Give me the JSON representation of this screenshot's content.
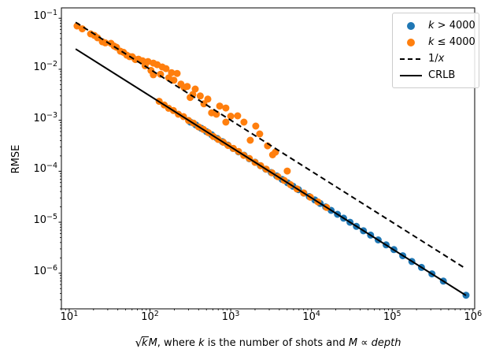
{
  "figure": {
    "background": "#ffffff",
    "text_color": "#000000",
    "spine_color": "#000000"
  },
  "axes": {
    "ylabel": "RMSE",
    "xlabel_full": "√kM, where k is the number of shots and M ∝ depth",
    "xlabel_parts": {
      "radical": "√",
      "radicand": "k",
      "var_m": "M",
      "rest1": ", where ",
      "var_k": "k",
      "rest2": " is the number of shots and ",
      "var_m2": "M",
      "prop": " ∝ ",
      "var_depth": "depth"
    },
    "x_ticks": [
      {
        "base": "10",
        "exp": "1",
        "value": 10
      },
      {
        "base": "10",
        "exp": "2",
        "value": 100
      },
      {
        "base": "10",
        "exp": "3",
        "value": 1000
      },
      {
        "base": "10",
        "exp": "4",
        "value": 10000
      },
      {
        "base": "10",
        "exp": "5",
        "value": 100000
      },
      {
        "base": "10",
        "exp": "6",
        "value": 1000000
      }
    ],
    "y_ticks": [
      {
        "base": "10",
        "exp": "−1",
        "value": 0.1
      },
      {
        "base": "10",
        "exp": "−2",
        "value": 0.01
      },
      {
        "base": "10",
        "exp": "−3",
        "value": 0.001
      },
      {
        "base": "10",
        "exp": "−4",
        "value": 0.0001
      },
      {
        "base": "10",
        "exp": "−5",
        "value": 1e-05
      },
      {
        "base": "10",
        "exp": "−6",
        "value": 1e-06
      }
    ]
  },
  "legend": {
    "items": [
      {
        "marker": "dot",
        "color": "#1f77b4",
        "pre": "",
        "var": "k",
        "rest": " > 4000"
      },
      {
        "marker": "dot",
        "color": "#ff7f0e",
        "pre": "",
        "var": "k",
        "rest": " ≤ 4000"
      },
      {
        "marker": "dash",
        "color": "#000000",
        "pre": "1/",
        "var": "x",
        "rest": ""
      },
      {
        "marker": "line",
        "color": "#000000",
        "pre": "",
        "var": "",
        "rest": "CRLB"
      }
    ]
  },
  "chart_data": {
    "type": "scatter",
    "title": "",
    "xlabel": "√kM, where k is the number of shots and M ∝ depth",
    "ylabel": "RMSE",
    "x_scale": "log",
    "y_scale": "log",
    "x_range": [
      8,
      1050000
    ],
    "y_range": [
      2e-07,
      0.16
    ],
    "grid": false,
    "legend_position": "upper right",
    "marker_radius": 4.5,
    "series": [
      {
        "name": "k > 4000",
        "color": "#1f77b4",
        "points": [
          [
            317,
            0.00092
          ],
          [
            370,
            0.00081
          ],
          [
            430,
            0.0007
          ],
          [
            500,
            0.0006
          ],
          [
            580,
            0.00052
          ],
          [
            680,
            0.00044
          ],
          [
            790,
            0.00038
          ],
          [
            920,
            0.000326
          ],
          [
            1070,
            0.00028
          ],
          [
            1250,
            0.00024
          ],
          [
            1460,
            0.000206
          ],
          [
            1700,
            0.000176
          ],
          [
            2000,
            0.00015
          ],
          [
            2330,
            0.000129
          ],
          [
            2720,
            0.00011
          ],
          [
            3180,
            9.43e-05
          ],
          [
            3710,
            8.08e-05
          ],
          [
            4330,
            6.93e-05
          ],
          [
            5060,
            5.93e-05
          ],
          [
            5900,
            5.08e-05
          ],
          [
            6900,
            4.35e-05
          ],
          [
            8050,
            3.73e-05
          ],
          [
            9400,
            3.19e-05
          ],
          [
            11000,
            2.73e-05
          ],
          [
            12800,
            2.34e-05
          ],
          [
            15000,
            2e-05
          ],
          [
            17500,
            1.71e-05
          ],
          [
            21000,
            1.43e-05
          ],
          [
            25000,
            1.2e-05
          ],
          [
            30000,
            1e-05
          ],
          [
            36000,
            8.3e-06
          ],
          [
            44000,
            6.8e-06
          ],
          [
            54000,
            5.6e-06
          ],
          [
            67000,
            4.5e-06
          ],
          [
            84000,
            3.6e-06
          ],
          [
            105000,
            2.9e-06
          ],
          [
            135000,
            2.2e-06
          ],
          [
            175000,
            1.7e-06
          ],
          [
            230000,
            1.3e-06
          ],
          [
            310000,
            9.7e-07
          ],
          [
            430000,
            7e-07
          ],
          [
            820000,
            3.7e-07
          ]
        ]
      },
      {
        "name": "k ≤ 4000",
        "color": "#ff7f0e",
        "points": [
          [
            12.5,
            0.0706
          ],
          [
            14.5,
            0.062
          ],
          [
            18.4,
            0.0494
          ],
          [
            20.5,
            0.046
          ],
          [
            22.4,
            0.0414
          ],
          [
            25.7,
            0.0346
          ],
          [
            28,
            0.033
          ],
          [
            32.9,
            0.0323
          ],
          [
            36,
            0.0285
          ],
          [
            38.5,
            0.027
          ],
          [
            43,
            0.0226
          ],
          [
            47,
            0.0215
          ],
          [
            51.5,
            0.0189
          ],
          [
            56,
            0.0177
          ],
          [
            60.3,
            0.0176
          ],
          [
            66,
            0.0155
          ],
          [
            72.1,
            0.0158
          ],
          [
            80.7,
            0.0147
          ],
          [
            87,
            0.0117
          ],
          [
            94.4,
            0.0142
          ],
          [
            103,
            0.0095
          ],
          [
            110,
            0.0132
          ],
          [
            110,
            0.0078
          ],
          [
            123,
            0.0123
          ],
          [
            135,
            0.008
          ],
          [
            142,
            0.0111
          ],
          [
            158,
            0.0103
          ],
          [
            171,
            0.0068
          ],
          [
            185,
            0.0086
          ],
          [
            198,
            0.0061
          ],
          [
            217,
            0.0083
          ],
          [
            242,
            0.0051
          ],
          [
            265,
            0.0044
          ],
          [
            290,
            0.0046
          ],
          [
            315,
            0.0028
          ],
          [
            339,
            0.0032
          ],
          [
            363,
            0.0041
          ],
          [
            420,
            0.003
          ],
          [
            465,
            0.0021
          ],
          [
            520,
            0.0026
          ],
          [
            580,
            0.0014
          ],
          [
            665,
            0.00131
          ],
          [
            730,
            0.0019
          ],
          [
            871,
            0.00174
          ],
          [
            871,
            0.00092
          ],
          [
            1000,
            0.0012
          ],
          [
            1219,
            0.00122
          ],
          [
            1459,
            0.00092
          ],
          [
            1746,
            0.000405
          ],
          [
            2042,
            0.00077
          ],
          [
            2286,
            0.00054
          ],
          [
            2858,
            0.000315
          ],
          [
            3300,
            0.00021
          ],
          [
            3581,
            0.000237
          ],
          [
            5011,
            0.000101
          ],
          [
            130,
            0.00235
          ],
          [
            150,
            0.002
          ],
          [
            170,
            0.00172
          ],
          [
            195,
            0.00155
          ],
          [
            225,
            0.00131
          ],
          [
            260,
            0.00118
          ],
          [
            300,
            0.00099
          ],
          [
            345,
            0.00088
          ],
          [
            400,
            0.00074
          ],
          [
            460,
            0.00066
          ],
          [
            530,
            0.00057
          ],
          [
            610,
            0.00048
          ],
          [
            700,
            0.00042
          ],
          [
            810,
            0.00037
          ],
          [
            930,
            0.00032
          ],
          [
            1080,
            0.00028
          ],
          [
            1250,
            0.000245
          ],
          [
            1450,
            0.000205
          ],
          [
            1700,
            0.000178
          ],
          [
            2000,
            0.000149
          ],
          [
            2350,
            0.000128
          ],
          [
            2750,
            0.00011
          ],
          [
            3250,
            9.3e-05
          ],
          [
            3850,
            7.8e-05
          ],
          [
            4600,
            6.6e-05
          ],
          [
            5500,
            5.46e-05
          ],
          [
            6600,
            4.5e-05
          ],
          [
            8000,
            3.75e-05
          ],
          [
            9700,
            3.1e-05
          ],
          [
            12000,
            2.51e-05
          ],
          [
            15400,
            1.95e-05
          ]
        ]
      }
    ],
    "lines": [
      {
        "name": "1/x",
        "style": "dashed",
        "color": "#000000",
        "coefficient": 1,
        "x_start": 12,
        "x_end": 800000
      },
      {
        "name": "CRLB",
        "style": "solid",
        "color": "#000000",
        "coefficient": 0.3,
        "x_start": 12,
        "x_end": 820000
      }
    ]
  }
}
